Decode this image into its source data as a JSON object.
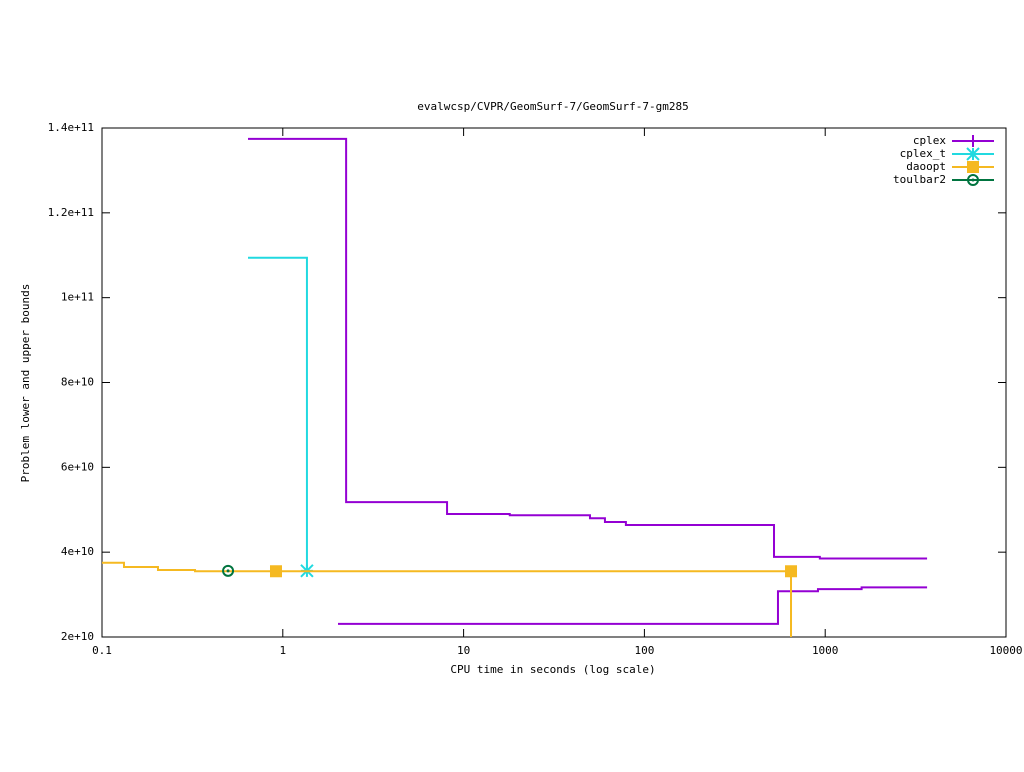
{
  "chart_data": {
    "type": "step",
    "title": "evalwcsp/CVPR/GeomSurf-7/GeomSurf-7-gm285",
    "x_label": "CPU time in seconds (log scale)",
    "y_label": "Problem lower and upper bounds",
    "xlog": true,
    "xlim": [
      0.1,
      10000
    ],
    "xticks": [
      0.1,
      1,
      10,
      100,
      1000,
      10000
    ],
    "ylim": [
      20000000000,
      140000000000
    ],
    "yticks": [
      {
        "value": 20000000000,
        "label": "2e+10"
      },
      {
        "value": 40000000000,
        "label": "4e+10"
      },
      {
        "value": 60000000000,
        "label": "6e+10"
      },
      {
        "value": 80000000000,
        "label": "8e+10"
      },
      {
        "value": 100000000000,
        "label": "1e+11"
      },
      {
        "value": 120000000000,
        "label": "1.2e+11"
      },
      {
        "value": 140000000000,
        "label": "1.4e+11"
      }
    ],
    "legend": "top-right",
    "series": [
      {
        "name": "cplex",
        "color": "#9400d3",
        "marker": "plus",
        "x": [
          0.642,
          2.24,
          8.1,
          18,
          50,
          60.5,
          79,
          521,
          934,
          3660
        ],
        "values": [
          137450000000,
          51800000000,
          49000000000,
          48700000000,
          48000000000,
          47100000000,
          46400000000,
          38900000000,
          38500000000,
          38500000000
        ],
        "lower": {
          "x": [
            2.02,
            548,
            912,
            1590,
            3660
          ],
          "values": [
            23100000000,
            30800000000,
            31300000000,
            31700000000,
            31700000000
          ]
        }
      },
      {
        "name": "cplex_t",
        "color": "#21d9e0",
        "marker": "star",
        "x": [
          0.642,
          1.36
        ],
        "values": [
          109400000000,
          35600000000
        ],
        "markers": [
          1
        ]
      },
      {
        "name": "daoopt",
        "color": "#f5b921",
        "marker": "square",
        "x": [
          0.1,
          0.1323,
          0.204,
          0.327,
          0.917,
          647,
          647
        ],
        "values": [
          37500000000,
          36500000000,
          35800000000,
          35500000000,
          35500000000,
          35500000000,
          0
        ],
        "markers": [
          4,
          5
        ]
      },
      {
        "name": "toulbar2",
        "color": "#00743f",
        "marker": "circle",
        "x": [
          0.498
        ],
        "values": [
          35600000000
        ],
        "markers": [
          0
        ]
      }
    ]
  }
}
